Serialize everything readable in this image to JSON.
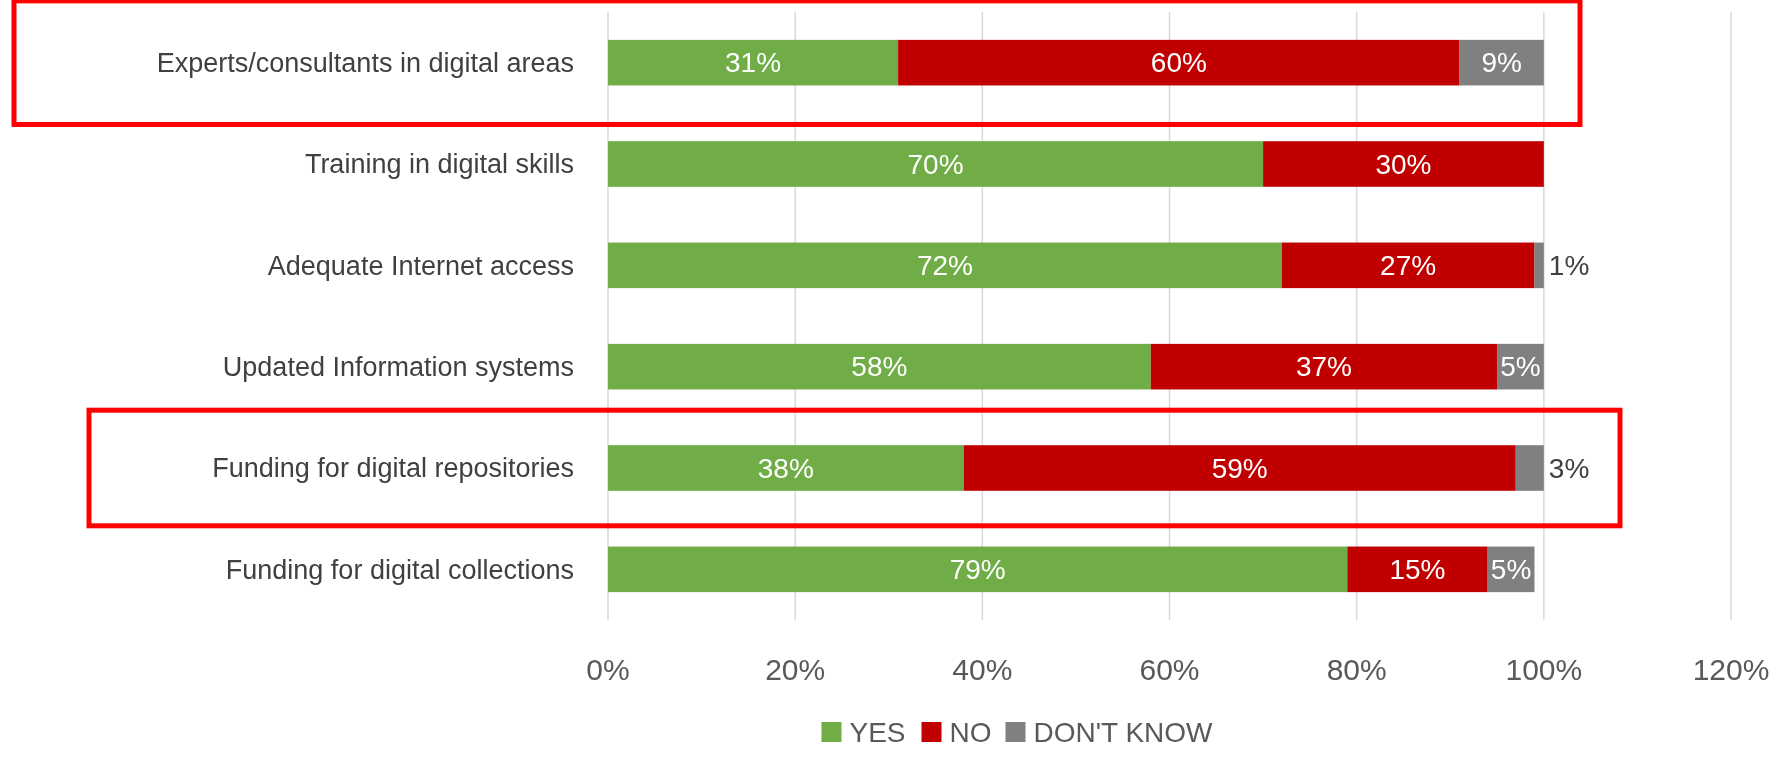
{
  "chart_data": {
    "type": "bar",
    "orientation": "horizontal",
    "stacked": true,
    "categories": [
      "Experts/consultants in digital areas",
      "Training in digital skills",
      "Adequate Internet access",
      "Updated Information systems",
      "Funding for digital repositories",
      "Funding for digital collections"
    ],
    "series": [
      {
        "name": "YES",
        "color": "#70ad47",
        "values": [
          31,
          70,
          72,
          58,
          38,
          79
        ],
        "value_labels": [
          "31%",
          "70%",
          "72%",
          "58%",
          "38%",
          "79%"
        ]
      },
      {
        "name": "NO",
        "color": "#c00000",
        "values": [
          60,
          30,
          27,
          37,
          59,
          15
        ],
        "value_labels": [
          "60%",
          "30%",
          "27%",
          "37%",
          "59%",
          "15%"
        ]
      },
      {
        "name": "DON'T KNOW",
        "color": "#808080",
        "values": [
          9,
          null,
          1,
          5,
          3,
          5
        ],
        "value_labels": [
          "9%",
          null,
          "1%",
          "5%",
          "3%",
          "5%"
        ]
      }
    ],
    "xlim": [
      0,
      120
    ],
    "xticks": [
      {
        "value": 0,
        "label": "0%"
      },
      {
        "value": 20,
        "label": "20%"
      },
      {
        "value": 40,
        "label": "40%"
      },
      {
        "value": 60,
        "label": "60%"
      },
      {
        "value": 80,
        "label": "80%"
      },
      {
        "value": 100,
        "label": "100%"
      },
      {
        "value": 120,
        "label": "120%"
      }
    ],
    "grid": "x",
    "legend": "bottom"
  }
}
